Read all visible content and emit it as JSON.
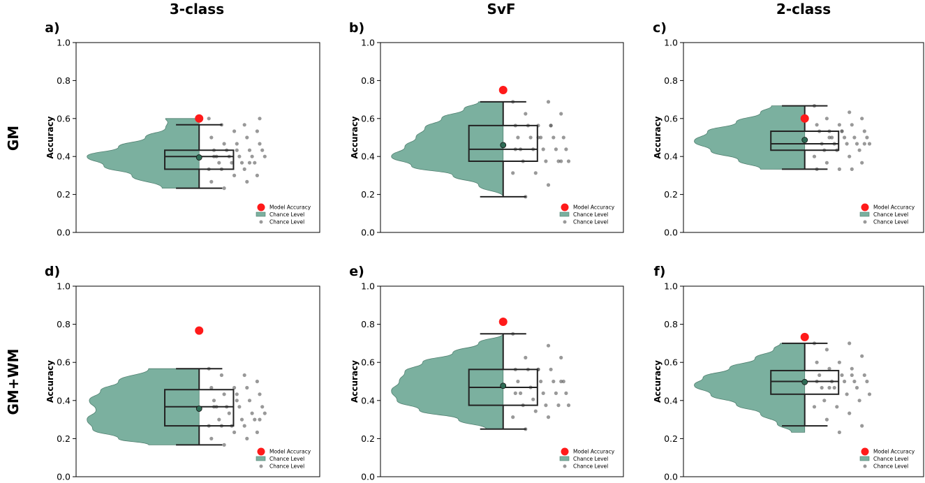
{
  "figure": {
    "column_titles": [
      "3-class",
      "SvF",
      "2-class"
    ],
    "row_titles": [
      "GM",
      "GM+WM"
    ]
  },
  "colors": {
    "violin": "#7bb09f",
    "violin_edge": "#4f7f6f",
    "model": "#ff1a1a",
    "mean_marker": "#2f6b55",
    "points": "#555555",
    "box": "#222222"
  },
  "legend": {
    "model": "Model Accuracy",
    "violin": "Chance Level",
    "points": "Chance Level"
  },
  "chart_data": [
    {
      "type": "violin",
      "panel": "a)",
      "ylabel": "Accuracy",
      "ylim": [
        0.0,
        1.0
      ],
      "yticks": [
        "0.0",
        "0.2",
        "0.4",
        "0.6",
        "0.8",
        "1.0"
      ],
      "model_accuracy": 0.6,
      "chance_mean": 0.395,
      "box": {
        "min": 0.233,
        "q1": 0.333,
        "median": 0.4,
        "q3": 0.433,
        "max": 0.567
      },
      "density_y": [
        0.233,
        0.3,
        0.35,
        0.4,
        0.45,
        0.5,
        0.55,
        0.58,
        0.6
      ],
      "density_w": [
        0.33,
        0.6,
        0.85,
        1.0,
        0.72,
        0.48,
        0.3,
        0.28,
        0.3
      ],
      "points": [
        0.6,
        0.567,
        0.567,
        0.533,
        0.533,
        0.5,
        0.5,
        0.467,
        0.467,
        0.467,
        0.433,
        0.433,
        0.433,
        0.433,
        0.4,
        0.4,
        0.4,
        0.4,
        0.4,
        0.367,
        0.367,
        0.367,
        0.367,
        0.333,
        0.333,
        0.333,
        0.3,
        0.3,
        0.267,
        0.267,
        0.233,
        0.6,
        0.433,
        0.4,
        0.367
      ]
    },
    {
      "type": "violin",
      "panel": "b)",
      "ylabel": "Accuracy",
      "ylim": [
        0.0,
        1.0
      ],
      "yticks": [
        "0.0",
        "0.2",
        "0.4",
        "0.6",
        "0.8",
        "1.0"
      ],
      "model_accuracy": 0.75,
      "chance_mean": 0.46,
      "box": {
        "min": 0.188,
        "q1": 0.375,
        "median": 0.438,
        "q3": 0.563,
        "max": 0.688
      },
      "density_y": [
        0.188,
        0.25,
        0.3,
        0.35,
        0.4,
        0.45,
        0.5,
        0.55,
        0.6,
        0.65,
        0.688
      ],
      "density_w": [
        0.0,
        0.22,
        0.45,
        0.82,
        1.0,
        0.88,
        0.78,
        0.7,
        0.55,
        0.35,
        0.22
      ],
      "points": [
        0.688,
        0.688,
        0.625,
        0.625,
        0.563,
        0.563,
        0.563,
        0.563,
        0.5,
        0.5,
        0.5,
        0.5,
        0.5,
        0.438,
        0.438,
        0.438,
        0.438,
        0.438,
        0.375,
        0.375,
        0.375,
        0.375,
        0.313,
        0.313,
        0.25,
        0.188,
        0.375,
        0.5,
        0.438,
        0.563
      ]
    },
    {
      "type": "violin",
      "panel": "c)",
      "ylabel": "Accuracy",
      "ylim": [
        0.0,
        1.0
      ],
      "yticks": [
        "0.0",
        "0.2",
        "0.4",
        "0.6",
        "0.8",
        "1.0"
      ],
      "model_accuracy": 0.6,
      "chance_mean": 0.487,
      "box": {
        "min": 0.333,
        "q1": 0.433,
        "median": 0.467,
        "q3": 0.533,
        "max": 0.667
      },
      "density_y": [
        0.333,
        0.38,
        0.43,
        0.48,
        0.53,
        0.58,
        0.63,
        0.667
      ],
      "density_w": [
        0.4,
        0.6,
        0.85,
        1.0,
        0.88,
        0.62,
        0.4,
        0.3
      ],
      "points": [
        0.667,
        0.633,
        0.6,
        0.6,
        0.567,
        0.567,
        0.567,
        0.533,
        0.533,
        0.533,
        0.533,
        0.5,
        0.5,
        0.5,
        0.5,
        0.467,
        0.467,
        0.467,
        0.467,
        0.467,
        0.433,
        0.433,
        0.433,
        0.4,
        0.4,
        0.367,
        0.367,
        0.333,
        0.333,
        0.333,
        0.5,
        0.467,
        0.533
      ]
    },
    {
      "type": "violin",
      "panel": "d)",
      "ylabel": "Accuracy",
      "ylim": [
        0.0,
        1.0
      ],
      "yticks": [
        "0.0",
        "0.2",
        "0.4",
        "0.6",
        "0.8",
        "1.0"
      ],
      "model_accuracy": 0.767,
      "chance_mean": 0.357,
      "box": {
        "min": 0.167,
        "q1": 0.267,
        "median": 0.367,
        "q3": 0.457,
        "max": 0.567
      },
      "density_y": [
        0.167,
        0.2,
        0.25,
        0.3,
        0.35,
        0.4,
        0.45,
        0.5,
        0.567
      ],
      "density_w": [
        0.45,
        0.72,
        0.95,
        1.0,
        0.92,
        0.98,
        0.88,
        0.72,
        0.45
      ],
      "points": [
        0.567,
        0.533,
        0.533,
        0.5,
        0.467,
        0.467,
        0.467,
        0.433,
        0.433,
        0.4,
        0.4,
        0.4,
        0.367,
        0.367,
        0.367,
        0.367,
        0.333,
        0.333,
        0.333,
        0.3,
        0.3,
        0.3,
        0.267,
        0.267,
        0.267,
        0.267,
        0.233,
        0.233,
        0.2,
        0.2,
        0.167,
        0.3,
        0.433,
        0.367
      ]
    },
    {
      "type": "violin",
      "panel": "e)",
      "ylabel": "Accuracy",
      "ylim": [
        0.0,
        1.0
      ],
      "yticks": [
        "0.0",
        "0.2",
        "0.4",
        "0.6",
        "0.8",
        "1.0"
      ],
      "model_accuracy": 0.813,
      "chance_mean": 0.477,
      "box": {
        "min": 0.25,
        "q1": 0.375,
        "median": 0.469,
        "q3": 0.563,
        "max": 0.75
      },
      "density_y": [
        0.25,
        0.3,
        0.35,
        0.4,
        0.45,
        0.5,
        0.55,
        0.6,
        0.65,
        0.7,
        0.75
      ],
      "density_w": [
        0.15,
        0.4,
        0.75,
        0.95,
        1.0,
        0.93,
        0.88,
        0.72,
        0.45,
        0.22,
        0.0
      ],
      "points": [
        0.75,
        0.688,
        0.625,
        0.625,
        0.563,
        0.563,
        0.563,
        0.563,
        0.5,
        0.5,
        0.5,
        0.5,
        0.469,
        0.438,
        0.438,
        0.438,
        0.438,
        0.406,
        0.375,
        0.375,
        0.375,
        0.375,
        0.344,
        0.313,
        0.313,
        0.25,
        0.5,
        0.563,
        0.438
      ]
    },
    {
      "type": "violin",
      "panel": "f)",
      "ylabel": "Accuracy",
      "ylim": [
        0.0,
        1.0
      ],
      "yticks": [
        "0.0",
        "0.2",
        "0.4",
        "0.6",
        "0.8",
        "1.0"
      ],
      "model_accuracy": 0.733,
      "chance_mean": 0.497,
      "box": {
        "min": 0.267,
        "q1": 0.433,
        "median": 0.5,
        "q3": 0.557,
        "max": 0.7
      },
      "density_y": [
        0.233,
        0.28,
        0.33,
        0.38,
        0.43,
        0.48,
        0.52,
        0.57,
        0.62,
        0.67,
        0.7
      ],
      "density_w": [
        0.12,
        0.25,
        0.4,
        0.62,
        0.85,
        1.0,
        0.92,
        0.68,
        0.45,
        0.28,
        0.22
      ],
      "points": [
        0.7,
        0.7,
        0.667,
        0.633,
        0.6,
        0.6,
        0.567,
        0.567,
        0.533,
        0.533,
        0.533,
        0.5,
        0.5,
        0.5,
        0.5,
        0.467,
        0.467,
        0.467,
        0.433,
        0.433,
        0.4,
        0.4,
        0.367,
        0.367,
        0.333,
        0.3,
        0.267,
        0.233,
        0.5,
        0.533,
        0.467
      ]
    }
  ]
}
